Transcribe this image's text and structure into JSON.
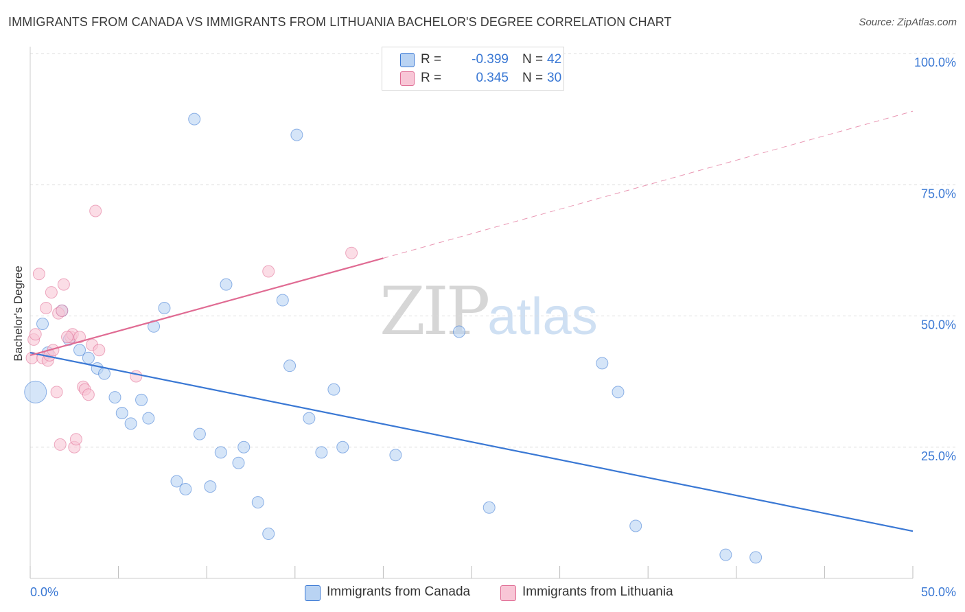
{
  "header": {
    "title": "IMMIGRANTS FROM CANADA VS IMMIGRANTS FROM LITHUANIA BACHELOR'S DEGREE CORRELATION CHART",
    "source": "Source: ZipAtlas.com"
  },
  "watermark": {
    "zip": "ZIP",
    "atlas": "atlas"
  },
  "legend": {
    "rows": [
      {
        "r_label": "R =",
        "r_value": "-0.399",
        "n_label": "N =",
        "n_value": "42"
      },
      {
        "r_label": "R =",
        "r_value": "0.345",
        "n_label": "N =",
        "n_value": "30"
      }
    ]
  },
  "bottom_legend": {
    "canada": "Immigrants from Canada",
    "lithuania": "Immigrants from Lithuania"
  },
  "chart_data": {
    "type": "scatter",
    "title": "IMMIGRANTS FROM CANADA VS IMMIGRANTS FROM LITHUANIA BACHELOR'S DEGREE CORRELATION CHART",
    "xlabel": "",
    "ylabel": "Bachelor's Degree",
    "xlim": [
      0,
      50
    ],
    "ylim": [
      0,
      100
    ],
    "x_tick_labels": [
      "0.0%",
      "50.0%"
    ],
    "y_tick_labels": [
      "25.0%",
      "50.0%",
      "75.0%",
      "100.0%"
    ],
    "y_ticks": [
      25,
      50,
      75,
      100
    ],
    "grid": true,
    "legend_position": "top-center",
    "colors": {
      "canada": "#3a78d4",
      "canada_fill": "#b9d3f3",
      "lithuania": "#e06b93",
      "lithuania_fill": "#f8c6d6",
      "axis_text": "#3a78d4"
    },
    "series": [
      {
        "name": "Immigrants from Canada",
        "key": "canada",
        "points": [
          [
            0.3,
            35.5
          ],
          [
            0.7,
            48.5
          ],
          [
            1.0,
            43.0
          ],
          [
            1.8,
            51.0
          ],
          [
            2.2,
            45.5
          ],
          [
            2.8,
            43.5
          ],
          [
            3.3,
            42.0
          ],
          [
            3.8,
            40.0
          ],
          [
            4.2,
            39.0
          ],
          [
            4.8,
            34.5
          ],
          [
            5.2,
            31.5
          ],
          [
            5.7,
            29.5
          ],
          [
            6.3,
            34.0
          ],
          [
            6.7,
            30.5
          ],
          [
            7.0,
            48.0
          ],
          [
            7.6,
            51.5
          ],
          [
            8.3,
            18.5
          ],
          [
            8.8,
            17.0
          ],
          [
            9.3,
            87.5
          ],
          [
            9.6,
            27.5
          ],
          [
            10.2,
            17.5
          ],
          [
            10.8,
            24.0
          ],
          [
            11.1,
            56.0
          ],
          [
            11.8,
            22.0
          ],
          [
            12.1,
            25.0
          ],
          [
            12.9,
            14.5
          ],
          [
            13.5,
            8.5
          ],
          [
            14.3,
            53.0
          ],
          [
            14.7,
            40.5
          ],
          [
            15.1,
            84.5
          ],
          [
            15.8,
            30.5
          ],
          [
            16.5,
            24.0
          ],
          [
            17.2,
            36.0
          ],
          [
            17.7,
            25.0
          ],
          [
            20.7,
            23.5
          ],
          [
            24.3,
            47.0
          ],
          [
            26.0,
            13.5
          ],
          [
            32.4,
            41.0
          ],
          [
            33.3,
            35.5
          ],
          [
            34.3,
            10.0
          ],
          [
            39.4,
            4.5
          ],
          [
            41.1,
            4.0
          ]
        ]
      },
      {
        "name": "Immigrants from Lithuania",
        "key": "lithuania",
        "points": [
          [
            0.1,
            42.0
          ],
          [
            0.2,
            45.5
          ],
          [
            0.3,
            46.5
          ],
          [
            0.5,
            58.0
          ],
          [
            0.7,
            42.0
          ],
          [
            0.9,
            51.5
          ],
          [
            1.0,
            41.5
          ],
          [
            1.1,
            42.5
          ],
          [
            1.2,
            54.5
          ],
          [
            1.3,
            43.5
          ],
          [
            1.5,
            35.5
          ],
          [
            1.6,
            50.5
          ],
          [
            1.7,
            25.5
          ],
          [
            1.8,
            51.0
          ],
          [
            1.9,
            56.0
          ],
          [
            2.3,
            46.0
          ],
          [
            2.4,
            46.5
          ],
          [
            2.5,
            25.0
          ],
          [
            2.6,
            26.5
          ],
          [
            2.8,
            46.0
          ],
          [
            3.0,
            36.5
          ],
          [
            3.1,
            36.0
          ],
          [
            3.3,
            35.0
          ],
          [
            3.5,
            44.5
          ],
          [
            3.7,
            70.0
          ],
          [
            3.9,
            43.5
          ],
          [
            6.0,
            38.5
          ],
          [
            13.5,
            58.5
          ],
          [
            18.2,
            62.0
          ],
          [
            2.1,
            46.0
          ]
        ]
      }
    ],
    "trendlines": [
      {
        "series": "Immigrants from Canada",
        "x": [
          0,
          50
        ],
        "y": [
          43.0,
          9.0
        ],
        "style": "solid"
      },
      {
        "series": "Immigrants from Lithuania",
        "x": [
          0,
          20
        ],
        "y": [
          42.5,
          61.0
        ],
        "style": "solid"
      },
      {
        "series": "Immigrants from Lithuania",
        "x": [
          20,
          50
        ],
        "y": [
          61.0,
          89.0
        ],
        "style": "dashed"
      }
    ]
  }
}
